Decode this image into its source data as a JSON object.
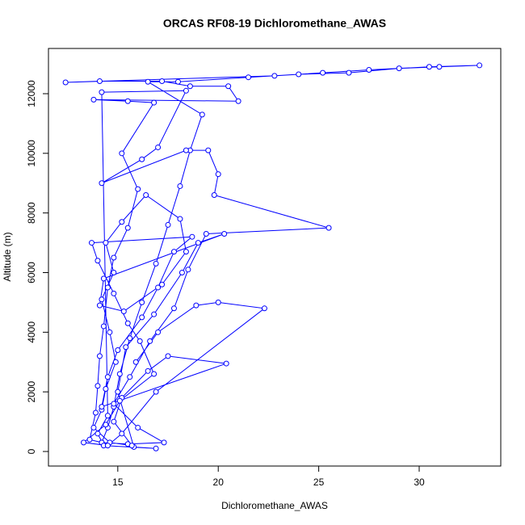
{
  "chart_data": {
    "type": "line",
    "title": "ORCAS RF08-19 Dichloromethane_AWAS",
    "x_label": "Dichloromethane_AWAS",
    "y_label": "Altitude (m)",
    "color": "#0000ff",
    "x": [
      14.2,
      14.5,
      14.8,
      15.1,
      15.6,
      16.2,
      16.9,
      17.5,
      18.1,
      18.6,
      19.2,
      16.5,
      18.0,
      21.5,
      24.0,
      26.5,
      29.0,
      31.0,
      33.0,
      30.5,
      27.5,
      25.2,
      22.8,
      12.4,
      14.1,
      17.2,
      18.6,
      20.5,
      21.0,
      13.8,
      15.5,
      16.8,
      15.2,
      16.0,
      15.5,
      14.8,
      14.5,
      14.3,
      14.1,
      14.0,
      13.9,
      13.6,
      14.2,
      15.5,
      17.3,
      16.0,
      14.8,
      15.6,
      16.6,
      17.8,
      18.5,
      19.4,
      25.5,
      19.8,
      20.0,
      19.5,
      18.4,
      14.2,
      16.2,
      17.0,
      18.4,
      14.2,
      14.5,
      14.0,
      14.3,
      16.9,
      15.8,
      15.0,
      15.4,
      16.8,
      18.2,
      19.0,
      20.3,
      14.3,
      14.1,
      15.3,
      17.2,
      18.4,
      18.1,
      16.4,
      15.2,
      14.4,
      14.8,
      14.2,
      14.6,
      14.9,
      14.4,
      14.2,
      13.8,
      14.6,
      15.7,
      14.8,
      15.2,
      16.5,
      17.5,
      20.4,
      14.2,
      14.5,
      15.0,
      16.2,
      17.0,
      17.8,
      18.7,
      13.7,
      14.0,
      14.8,
      15.5,
      16.1,
      16.8,
      15.1,
      14.4,
      13.3,
      14.5,
      15.2,
      16.9,
      22.3,
      20.0,
      18.9,
      17.0,
      15.9
    ],
    "values": [
      300,
      800,
      1500,
      2600,
      3800,
      5000,
      6300,
      7600,
      8900,
      10100,
      11300,
      12400,
      12400,
      12550,
      12650,
      12700,
      12850,
      12900,
      12950,
      12900,
      12800,
      12700,
      12600,
      12380,
      12420,
      12420,
      12250,
      12250,
      11750,
      11800,
      11750,
      11700,
      10000,
      8800,
      7500,
      6500,
      5500,
      4200,
      3200,
      2200,
      1300,
      400,
      300,
      250,
      300,
      800,
      1600,
      2500,
      3700,
      4800,
      6100,
      7300,
      7500,
      8600,
      9300,
      10100,
      10100,
      9000,
      9800,
      10200,
      12100,
      12050,
      1200,
      600,
      200,
      100,
      150,
      2000,
      3500,
      4600,
      6000,
      7000,
      7300,
      5800,
      4900,
      4700,
      5600,
      6700,
      7800,
      8600,
      7700,
      7000,
      6000,
      5100,
      4000,
      3000,
      2100,
      1400,
      800,
      300,
      200,
      1000,
      1800,
      2700,
      3200,
      2950,
      1500,
      2500,
      3400,
      4500,
      5500,
      6700,
      7200,
      7000,
      6400,
      5300,
      4300,
      3700,
      2600,
      1700,
      900,
      300,
      200,
      600,
      2000,
      4800,
      5000,
      4900,
      4000,
      3000
    ],
    "xlim": [
      11.55,
      34.06
    ],
    "ylim": [
      -488,
      13517
    ],
    "xticks": [
      15,
      20,
      25,
      30
    ],
    "yticks": [
      0,
      2000,
      4000,
      6000,
      8000,
      10000,
      12000
    ]
  }
}
